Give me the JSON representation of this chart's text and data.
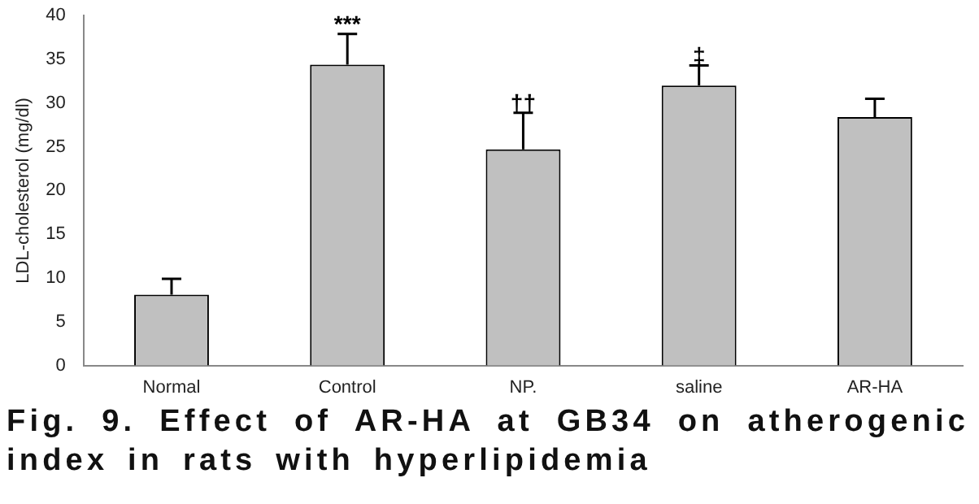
{
  "chart_data": {
    "type": "bar",
    "title": "Fig. 9. Effect of AR-HA at GB34 on atherogenic index in rats with hyperlipidemia",
    "ylabel": "LDL-cholesterol (mg/dl)",
    "categories": [
      "Normal",
      "Control",
      "NP.",
      "saline",
      "AR-HA"
    ],
    "values": [
      8.1,
      34.4,
      24.7,
      32.0,
      28.4
    ],
    "errors": [
      [
        8.1,
        9.9
      ],
      [
        34.4,
        37.9
      ],
      [
        24.7,
        28.9
      ],
      [
        32.0,
        34.3
      ],
      [
        28.4,
        30.5
      ]
    ],
    "color": "#c0c0c0",
    "ylim": [
      0,
      40
    ],
    "yticks": [
      0,
      5,
      10,
      15,
      20,
      25,
      30,
      35,
      40
    ],
    "annotations": [
      {
        "text": "***",
        "x": "Control",
        "y": 38.3
      },
      {
        "text": "††",
        "x": "NP.",
        "y": 29.3
      },
      {
        "text": "‡",
        "x": "saline",
        "y": 34.7
      }
    ],
    "grid": false,
    "legend": false
  }
}
